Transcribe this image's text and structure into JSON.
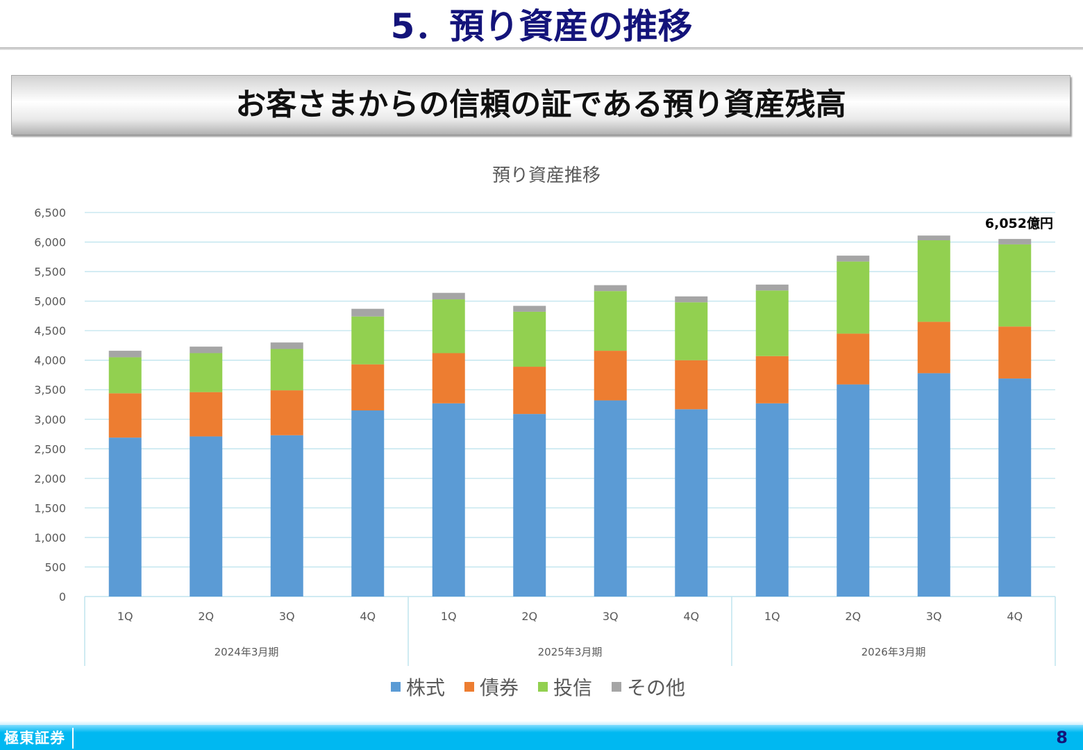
{
  "slide": {
    "title": "5．預り資産の推移",
    "banner": "お客さまからの信頼の証である預り資産残高"
  },
  "footer": {
    "brand": "極東証券",
    "page": "8"
  },
  "colors": {
    "title": "#14147a",
    "footer": "#00b8f1",
    "gridline": "#bfe4ee"
  },
  "chart_data": {
    "type": "bar",
    "stacked": true,
    "title": "預り資産推移",
    "ylim": [
      0,
      6500
    ],
    "y_ticks": [
      "0",
      "500",
      "1,000",
      "1,500",
      "2,000",
      "2,500",
      "3,000",
      "3,500",
      "4,000",
      "4,500",
      "5,000",
      "5,500",
      "6,000",
      "6,500"
    ],
    "y_tick_values": [
      0,
      500,
      1000,
      1500,
      2000,
      2500,
      3000,
      3500,
      4000,
      4500,
      5000,
      5500,
      6000,
      6500
    ],
    "grid": true,
    "legend": "bottom",
    "categories": [
      "1Q",
      "2Q",
      "3Q",
      "4Q",
      "1Q",
      "2Q",
      "3Q",
      "4Q",
      "1Q",
      "2Q",
      "3Q",
      "4Q"
    ],
    "groups": [
      {
        "label": "2024年3月期",
        "count": 4
      },
      {
        "label": "2025年3月期",
        "count": 4
      },
      {
        "label": "2026年3月期",
        "count": 4
      }
    ],
    "series": [
      {
        "name": "株式",
        "color": "#5b9bd5",
        "values": [
          2690,
          2710,
          2730,
          3150,
          3270,
          3090,
          3320,
          3170,
          3270,
          3590,
          3780,
          3690
        ]
      },
      {
        "name": "債券",
        "color": "#ed7d31",
        "values": [
          750,
          750,
          760,
          780,
          850,
          800,
          840,
          830,
          800,
          860,
          870,
          880
        ]
      },
      {
        "name": "投信",
        "color": "#92d050",
        "values": [
          610,
          660,
          700,
          810,
          910,
          930,
          1010,
          980,
          1110,
          1220,
          1380,
          1390
        ]
      },
      {
        "name": "その他",
        "color": "#a5a5a5",
        "values": [
          110,
          110,
          110,
          130,
          110,
          100,
          100,
          100,
          100,
          100,
          80,
          92
        ]
      }
    ],
    "annotations": [
      {
        "text": "6,052億円",
        "category_index": 11
      }
    ]
  }
}
